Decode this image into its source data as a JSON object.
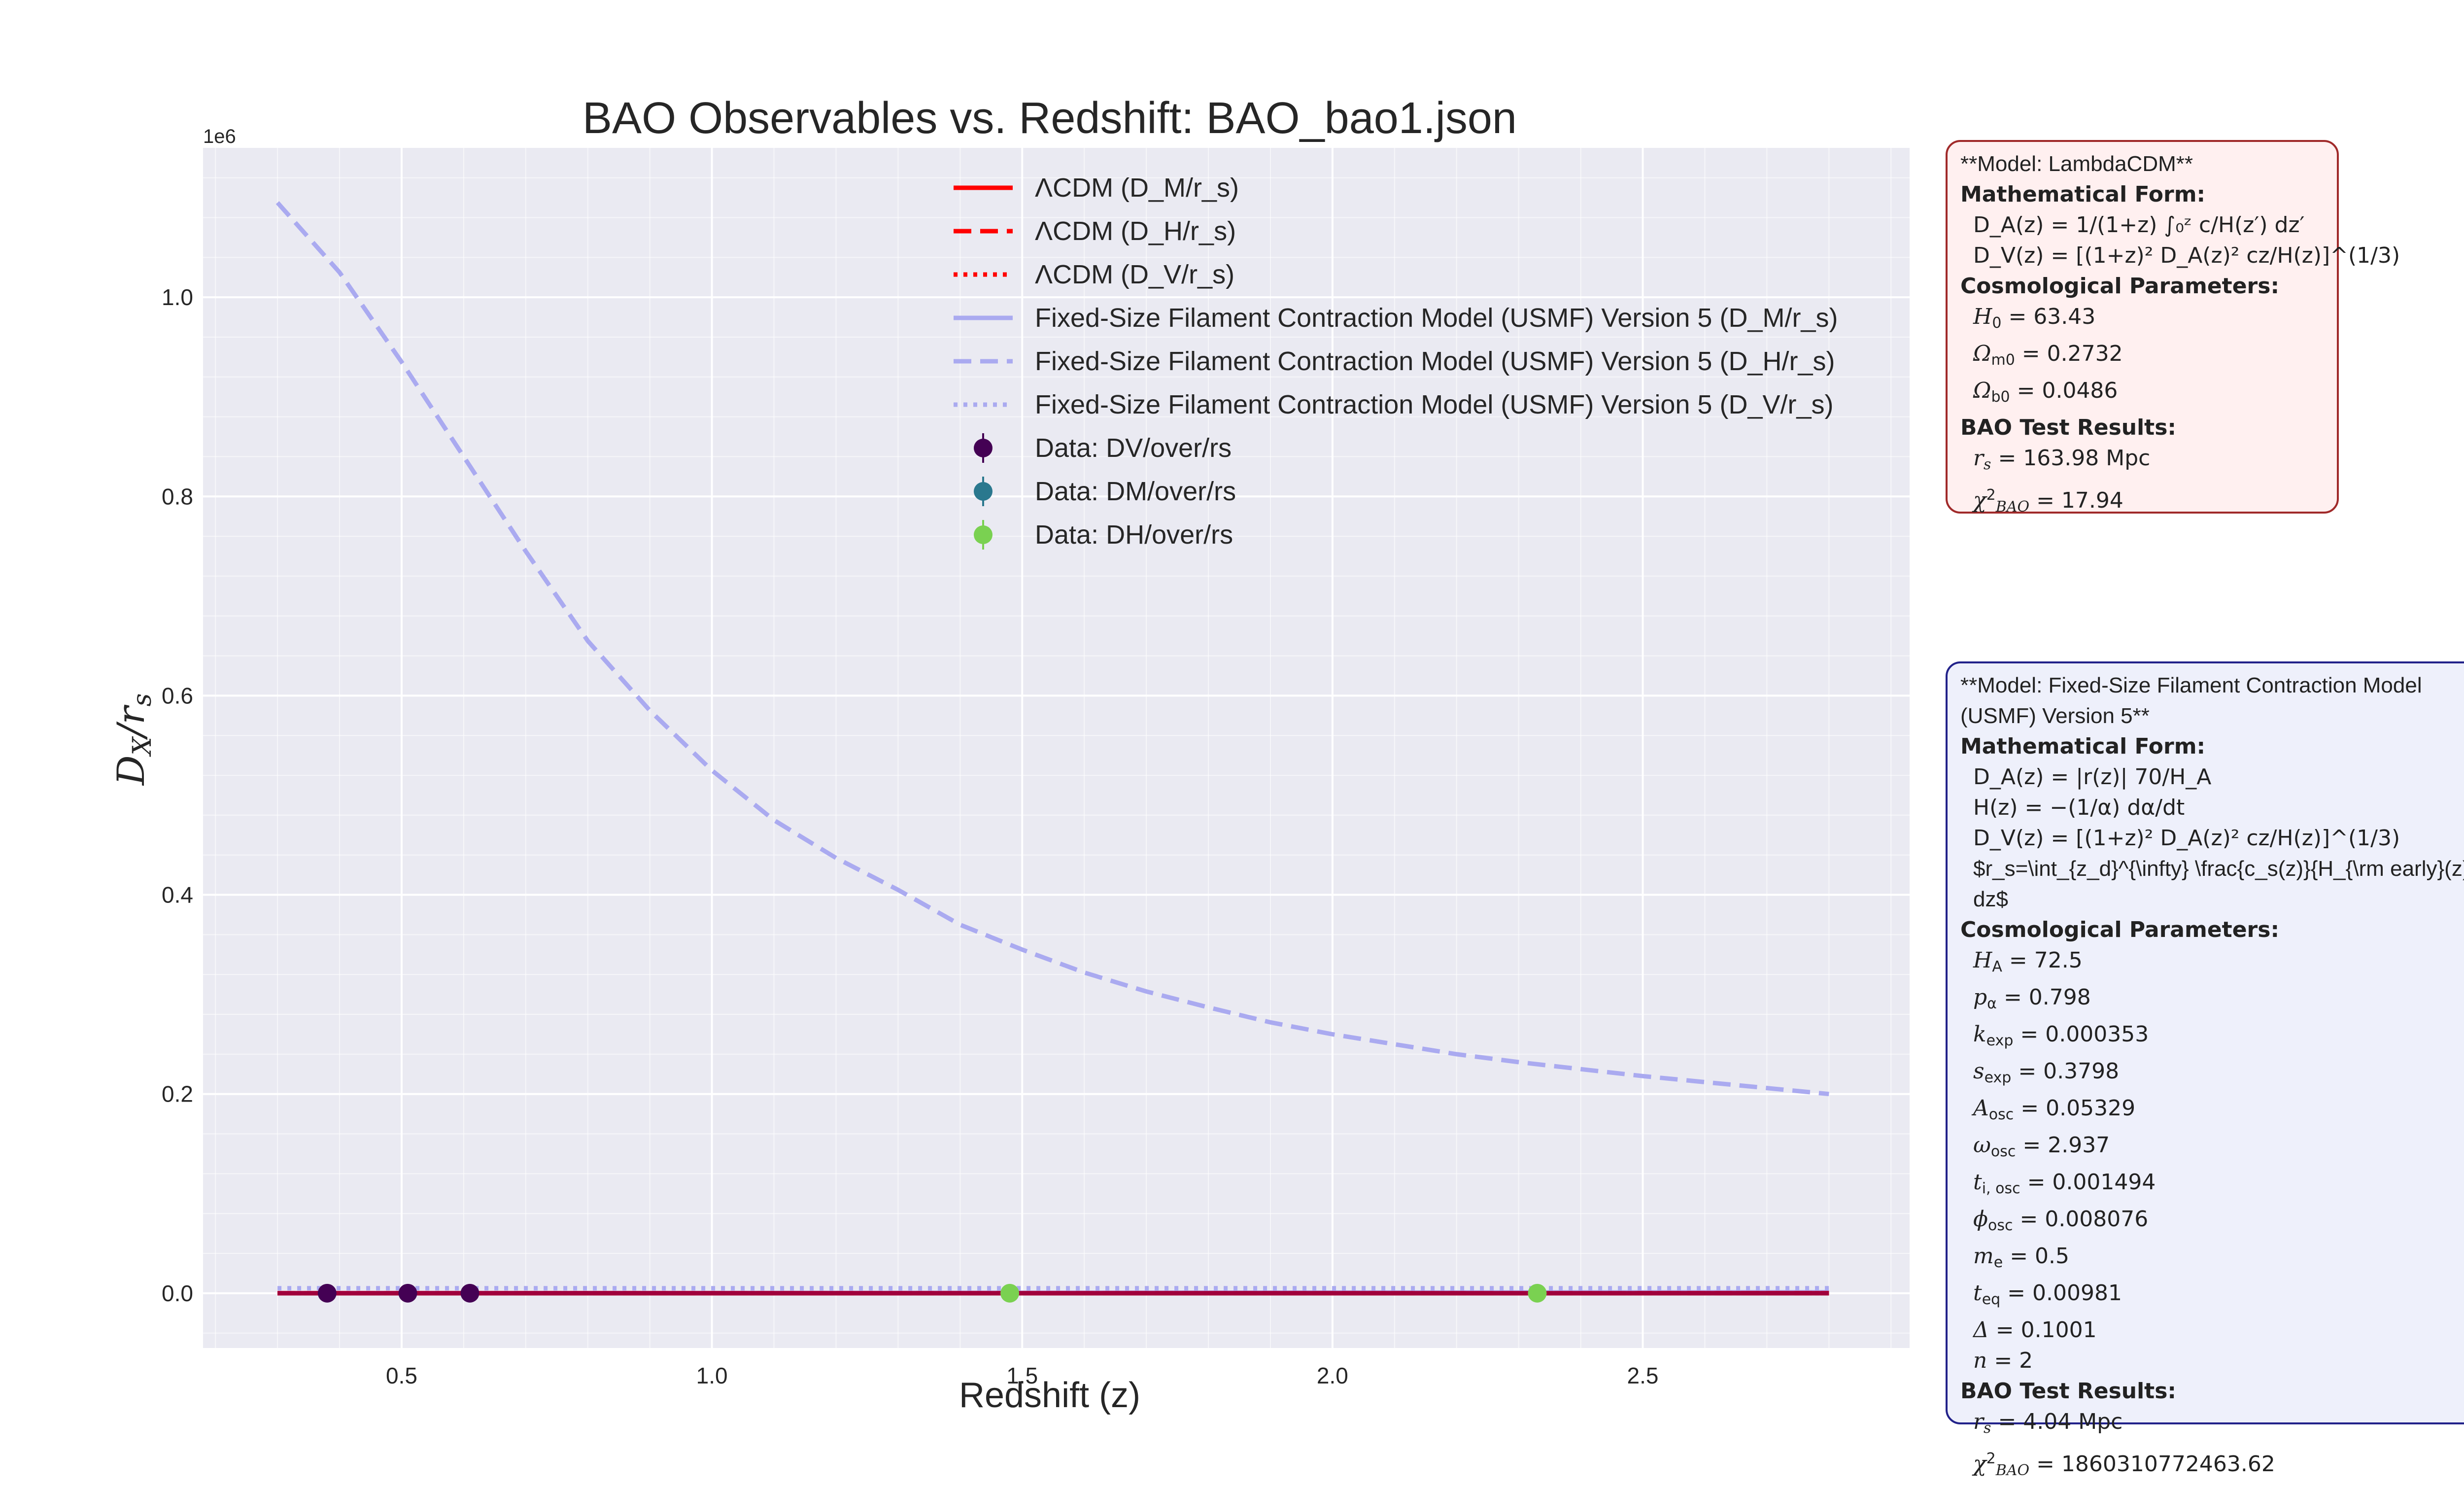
{
  "chart_data": {
    "type": "line",
    "title": "BAO Observables vs. Redshift: BAO_bao1.json",
    "xlabel": "Redshift (z)",
    "ylabel": "D_X/r_s",
    "y_multiplier_label": "1e6",
    "xlim": [
      0.18,
      2.93
    ],
    "ylim": [
      -55000,
      1150000
    ],
    "xticks": [
      "0.5",
      "1.0",
      "1.5",
      "2.0",
      "2.5"
    ],
    "yticks": [
      "0.0",
      "0.2",
      "0.4",
      "0.6",
      "0.8",
      "1.0"
    ],
    "grid": true,
    "legend_position": "top-center",
    "series": [
      {
        "name": "ΛCDM (D_M/r_s)",
        "color": "#ff0000",
        "style": "solid",
        "x": [
          0.3,
          2.8
        ],
        "y": [
          0,
          50
        ]
      },
      {
        "name": "ΛCDM (D_H/r_s)",
        "color": "#ff0000",
        "style": "dashed",
        "x": [
          0.3,
          2.8
        ],
        "y": [
          0,
          20
        ]
      },
      {
        "name": "ΛCDM (D_V/r_s)",
        "color": "#ff0000",
        "style": "dotted",
        "x": [
          0.3,
          2.8
        ],
        "y": [
          0,
          40
        ]
      },
      {
        "name": "Fixed-Size Filament Contraction Model (USMF) Version 5 (D_M/r_s)",
        "color": "#aaaaf0",
        "style": "solid",
        "x": [
          0.3,
          2.8
        ],
        "y": [
          0,
          1000
        ]
      },
      {
        "name": "Fixed-Size Filament Contraction Model (USMF) Version 5 (D_H/r_s)",
        "color": "#aaaaf0",
        "style": "dashed",
        "x": [
          0.3,
          0.4,
          0.5,
          0.6,
          0.7,
          0.8,
          0.9,
          1.0,
          1.1,
          1.2,
          1.3,
          1.4,
          1.5,
          1.6,
          1.7,
          1.8,
          1.9,
          2.0,
          2.1,
          2.2,
          2.3,
          2.4,
          2.5,
          2.6,
          2.7,
          2.8
        ],
        "y": [
          1095000,
          1025000,
          935000,
          840000,
          745000,
          655000,
          585000,
          525000,
          475000,
          437000,
          405000,
          370000,
          345000,
          322000,
          303000,
          287000,
          272000,
          260000,
          250000,
          240000,
          232000,
          225000,
          218000,
          212000,
          206000,
          200000
        ]
      },
      {
        "name": "Fixed-Size Filament Contraction Model (USMF) Version 5 (D_V/r_s)",
        "color": "#aaaaf0",
        "style": "dotted",
        "x": [
          0.3,
          2.8
        ],
        "y": [
          5000,
          5000
        ]
      }
    ],
    "data_points": [
      {
        "name": "Data: DV/over/rs",
        "color": "#440154",
        "x": [
          0.38,
          0.51,
          0.61
        ],
        "y": [
          0,
          0,
          0
        ]
      },
      {
        "name": "Data: DM/over/rs",
        "color": "#2a788e",
        "x": [],
        "y": []
      },
      {
        "name": "Data: DH/over/rs",
        "color": "#7ad151",
        "x": [
          1.48,
          2.33
        ],
        "y": [
          0,
          0
        ]
      }
    ]
  },
  "panels": {
    "lcdm": {
      "model": "**Model: LambdaCDM**",
      "math_header": "Mathematical Form:",
      "formula_da": "D_A(z) = 1/(1+z) ∫₀ᶻ c/H(z′) dz′",
      "formula_dv": "D_V(z) = [(1+z)² D_A(z)² cz/H(z)]^(1/3)",
      "params_header": "Cosmological Parameters:",
      "params": [
        {
          "sym": "H",
          "sub": "0",
          "value": "= 63.43"
        },
        {
          "sym": "Ω",
          "sub": "m0",
          "value": "= 0.2732"
        },
        {
          "sym": "Ω",
          "sub": "b0",
          "value": "= 0.0486"
        }
      ],
      "results_header": "BAO Test Results:",
      "rs": "= 163.98 Mpc",
      "chi2": "= 17.94"
    },
    "usmf": {
      "model": "**Model: Fixed-Size Filament Contraction Model (USMF) Version 5**",
      "math_header": "Mathematical Form:",
      "formula_da": "D_A(z) = |r(z)| 70/H_A",
      "formula_h": "H(z) = −(1/α) dα/dt",
      "formula_dv": "D_V(z) = [(1+z)² D_A(z)² cz/H(z)]^(1/3)",
      "formula_rs_raw": "$r_s=\\int_{z_d}^{\\infty} \\frac{c_s(z)}{H_{\\rm early}(z)} dz$",
      "params_header": "Cosmological Parameters:",
      "params": [
        {
          "sym": "H",
          "sub": "A",
          "value": "= 72.5"
        },
        {
          "sym": "p",
          "sub": "α",
          "value": "= 0.798"
        },
        {
          "sym": "k",
          "sub": "exp",
          "value": "= 0.000353"
        },
        {
          "sym": "s",
          "sub": "exp",
          "value": "= 0.3798"
        },
        {
          "sym": "A",
          "sub": "osc",
          "value": "= 0.05329"
        },
        {
          "sym": "ω",
          "sub": "osc",
          "value": "= 2.937"
        },
        {
          "sym": "t",
          "sub": "i, osc",
          "value": "= 0.001494"
        },
        {
          "sym": "ϕ",
          "sub": "osc",
          "value": "= 0.008076"
        },
        {
          "sym": "m",
          "sub": "e",
          "value": "= 0.5"
        },
        {
          "sym": "t",
          "sub": "eq",
          "value": "= 0.00981"
        },
        {
          "sym": "Δ",
          "sub": "",
          "value": "= 0.1001"
        },
        {
          "sym": "n",
          "sub": "",
          "value": "= 2"
        }
      ],
      "results_header": "BAO Test Results:",
      "rs": "= 4.04 Mpc",
      "chi2": "= 1860310772463.62"
    }
  }
}
